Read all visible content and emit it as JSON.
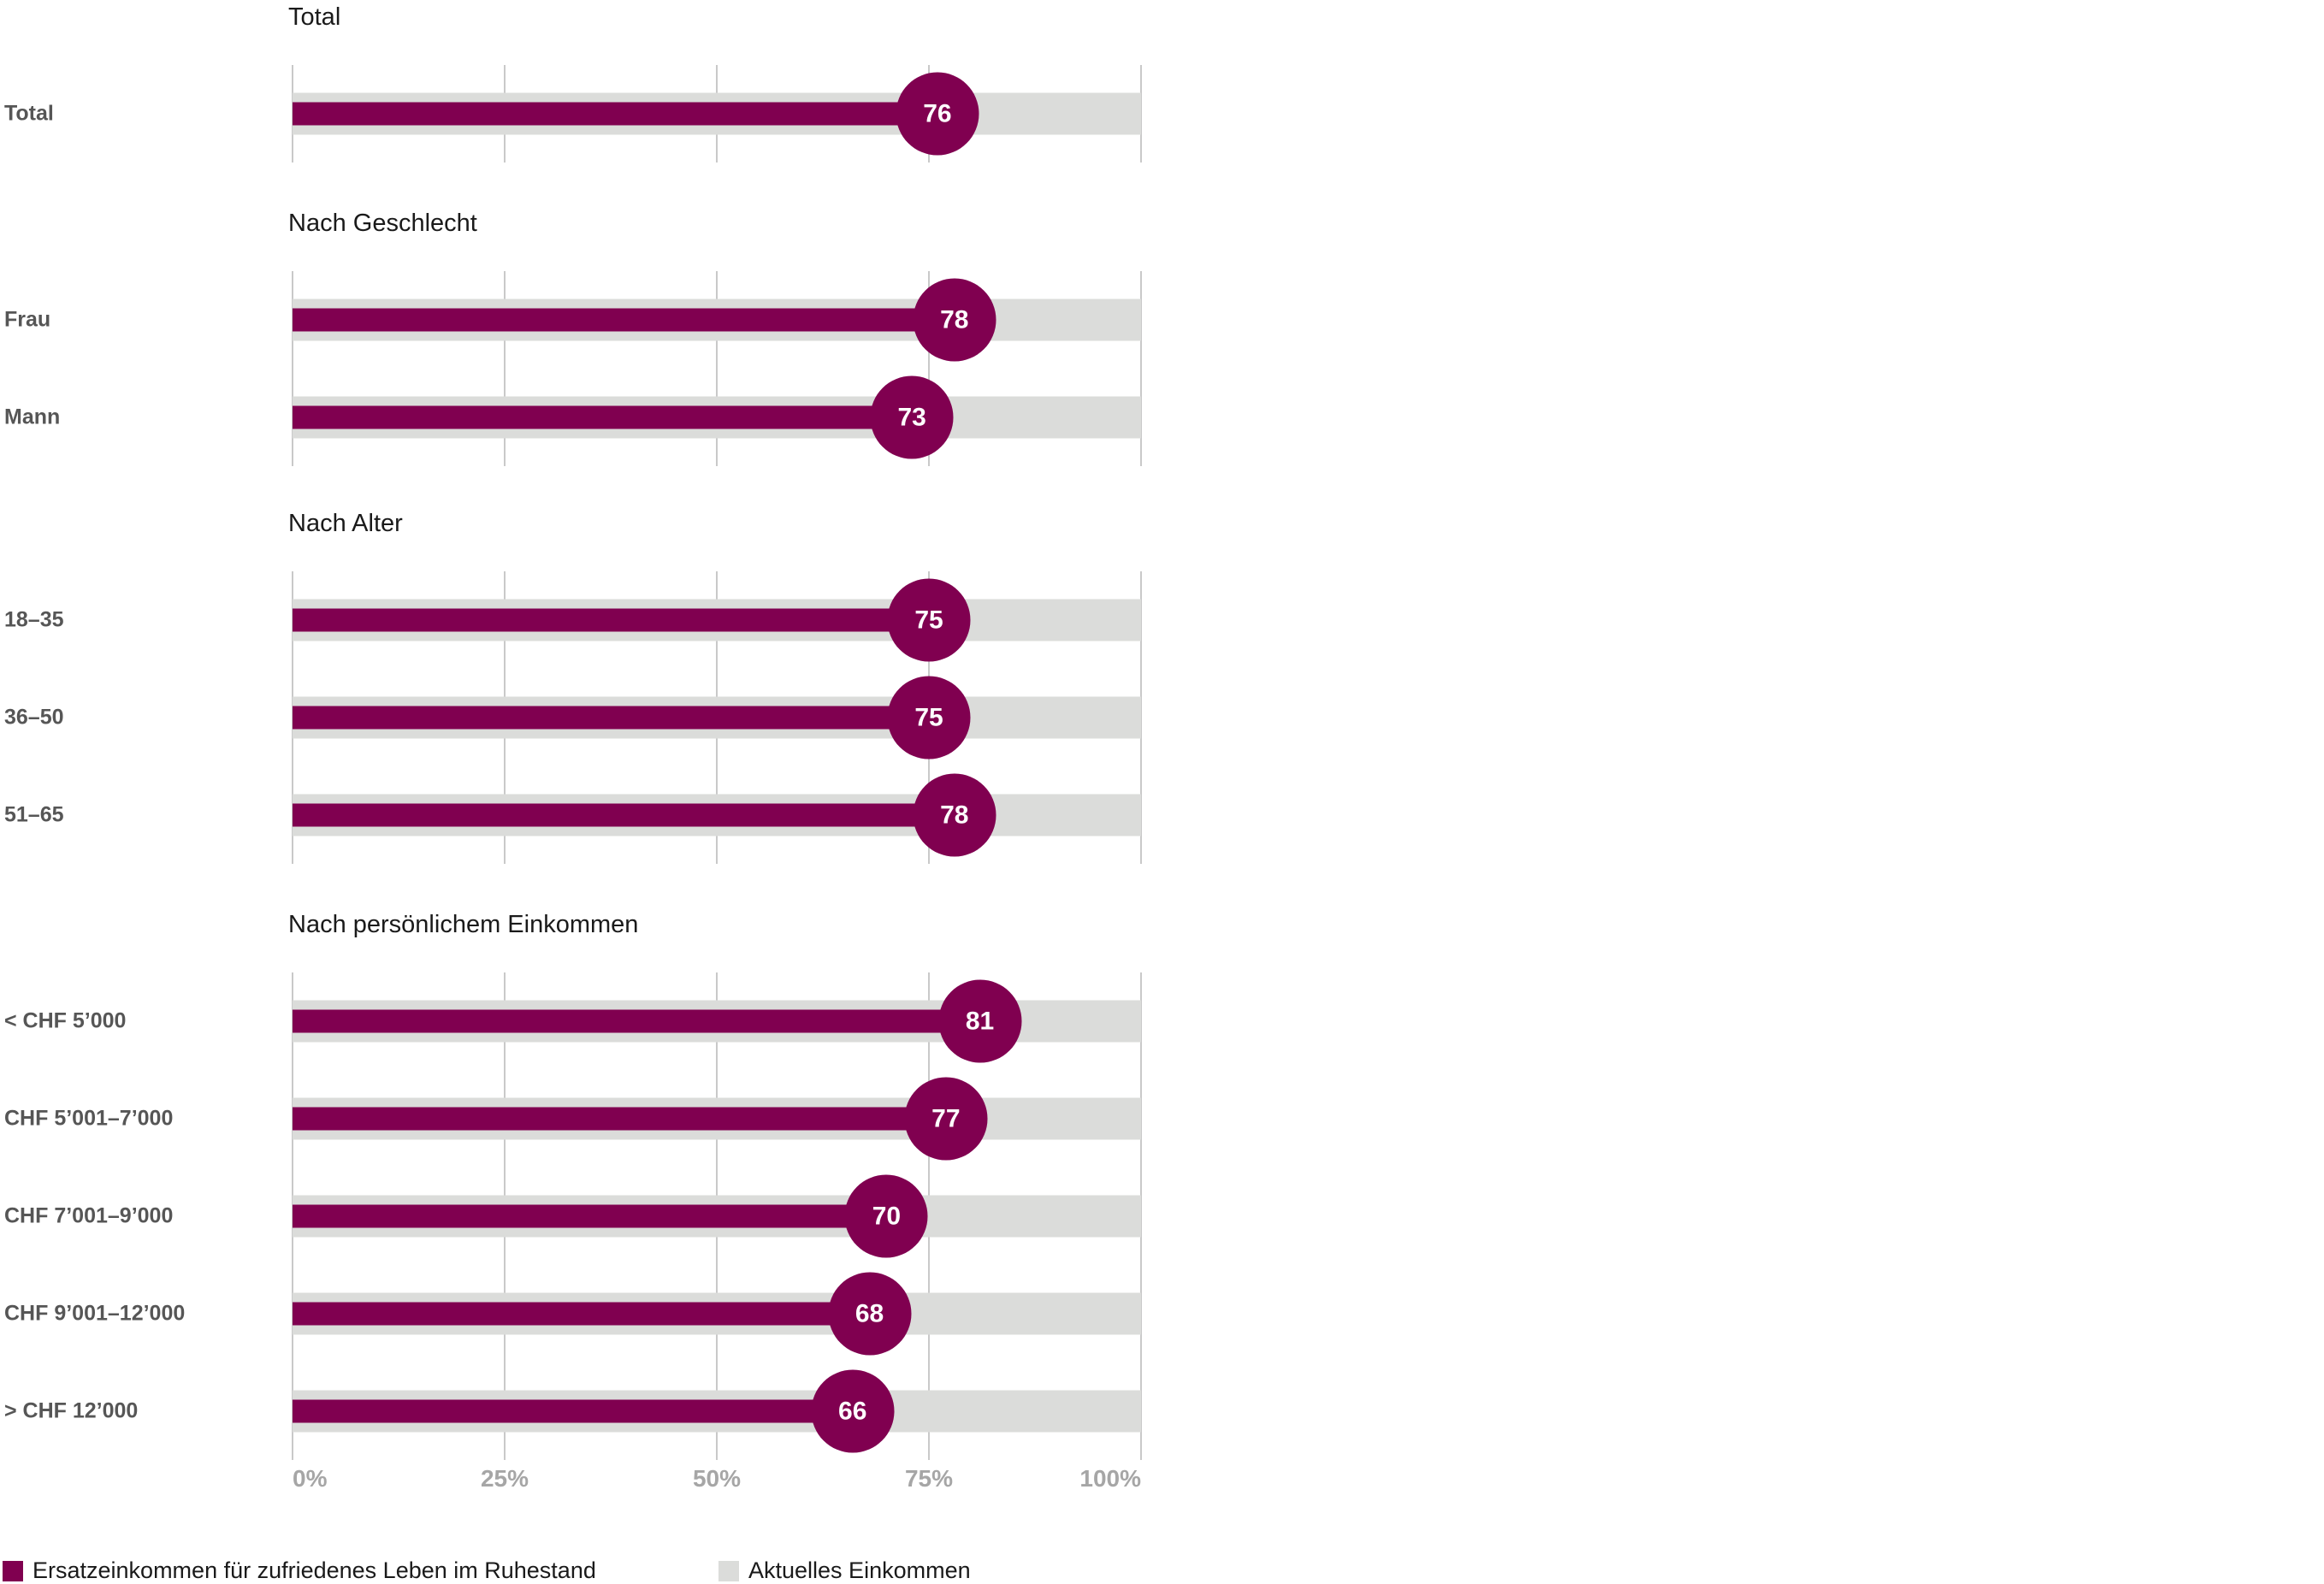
{
  "chart_data": {
    "type": "bar",
    "orientation": "horizontal",
    "unit": "%",
    "xlim": [
      0,
      100
    ],
    "grid": "vertical",
    "x_ticks": [
      {
        "value": 0,
        "label": "0%"
      },
      {
        "value": 25,
        "label": "25%"
      },
      {
        "value": 50,
        "label": "50%"
      },
      {
        "value": 75,
        "label": "75%"
      },
      {
        "value": 100,
        "label": "100%"
      }
    ],
    "colors": {
      "series": "#800050",
      "track": "#DBDCDA",
      "gridline": "#C9C9C9",
      "row_label": "#565656",
      "section_title": "#1A1A1A",
      "axis_label": "#A6A6A6",
      "bubble_text": "#FFFFFF",
      "legend_text": "#1A1A1A"
    },
    "sections": [
      {
        "title": "Total",
        "rows": [
          {
            "label": "Total",
            "value": 76
          }
        ]
      },
      {
        "title": "Nach Geschlecht",
        "rows": [
          {
            "label": "Frau",
            "value": 78
          },
          {
            "label": "Mann",
            "value": 73
          }
        ]
      },
      {
        "title": "Nach Alter",
        "rows": [
          {
            "label": "18–35",
            "value": 75
          },
          {
            "label": "36–50",
            "value": 75
          },
          {
            "label": "51–65",
            "value": 78
          }
        ]
      },
      {
        "title": "Nach persönlichem Einkommen",
        "rows": [
          {
            "label": "< CHF 5’000",
            "value": 81
          },
          {
            "label": "CHF 5’001–7’000",
            "value": 77
          },
          {
            "label": "CHF 7’001–9’000",
            "value": 70
          },
          {
            "label": "CHF 9’001–12’000",
            "value": 68
          },
          {
            "label": "> CHF 12’000",
            "value": 66
          }
        ]
      }
    ],
    "legend": [
      {
        "label": "Ersatzeinkommen für zufriedenes Leben im Ruhestand",
        "color": "#800050"
      },
      {
        "label": "Aktuelles Einkommen",
        "color": "#DBDCDA"
      }
    ]
  }
}
